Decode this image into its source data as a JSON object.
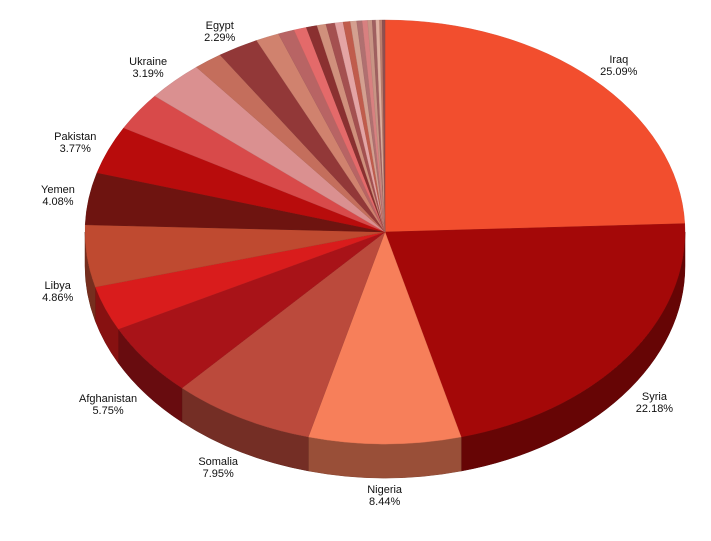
{
  "chart_data": {
    "type": "pie",
    "style": "3d",
    "title": "",
    "slices": [
      {
        "label": "Iraq",
        "value": 25.09,
        "value_label": "25.09%",
        "color": "#f24e2e"
      },
      {
        "label": "Syria",
        "value": 22.18,
        "value_label": "22.18%",
        "color": "#a40808"
      },
      {
        "label": "Nigeria",
        "value": 8.44,
        "value_label": "8.44%",
        "color": "#f77f5a"
      },
      {
        "label": "Somalia",
        "value": 7.95,
        "value_label": "7.95%",
        "color": "#bb4a3c"
      },
      {
        "label": "Afghanistan",
        "value": 5.75,
        "value_label": "5.75%",
        "color": "#a81318"
      },
      {
        "label": "",
        "value": 3.5,
        "value_label": "",
        "color": "#d91c1c"
      },
      {
        "label": "Libya",
        "value": 4.86,
        "value_label": "4.86%",
        "color": "#bf4a30"
      },
      {
        "label": "Yemen",
        "value": 4.08,
        "value_label": "4.08%",
        "color": "#6e1410"
      },
      {
        "label": "Pakistan",
        "value": 3.77,
        "value_label": "3.77%",
        "color": "#b80c0c"
      },
      {
        "label": "",
        "value": 3.0,
        "value_label": "",
        "color": "#d84a4a"
      },
      {
        "label": "Ukraine",
        "value": 3.19,
        "value_label": "3.19%",
        "color": "#da9090"
      },
      {
        "label": "",
        "value": 1.6,
        "value_label": "",
        "color": "#c46e5c"
      },
      {
        "label": "Egypt",
        "value": 2.29,
        "value_label": "2.29%",
        "color": "#923838"
      },
      {
        "label": "",
        "value": 1.3,
        "value_label": "",
        "color": "#d0826e"
      },
      {
        "label": "",
        "value": 0.9,
        "value_label": "",
        "color": "#b86464"
      },
      {
        "label": "",
        "value": 0.7,
        "value_label": "",
        "color": "#e46a6a"
      },
      {
        "label": "",
        "value": 0.6,
        "value_label": "",
        "color": "#8a3030"
      },
      {
        "label": "",
        "value": 0.5,
        "value_label": "",
        "color": "#d0907c"
      },
      {
        "label": "",
        "value": 0.5,
        "value_label": "",
        "color": "#a45050"
      },
      {
        "label": "",
        "value": 0.45,
        "value_label": "",
        "color": "#e4a4a4"
      },
      {
        "label": "",
        "value": 0.4,
        "value_label": "",
        "color": "#c05c4c"
      },
      {
        "label": "",
        "value": 0.35,
        "value_label": "",
        "color": "#d4a090"
      },
      {
        "label": "",
        "value": 0.3,
        "value_label": "",
        "color": "#b07070"
      },
      {
        "label": "",
        "value": 0.3,
        "value_label": "",
        "color": "#d88080"
      },
      {
        "label": "",
        "value": 0.25,
        "value_label": "",
        "color": "#c89484"
      },
      {
        "label": "",
        "value": 0.2,
        "value_label": "",
        "color": "#a06060"
      },
      {
        "label": "",
        "value": 0.2,
        "value_label": "",
        "color": "#e0b0a0"
      },
      {
        "label": "",
        "value": 0.15,
        "value_label": "",
        "color": "#bc7c6c"
      },
      {
        "label": "",
        "value": 0.15,
        "value_label": "",
        "color": "#905050"
      }
    ]
  }
}
